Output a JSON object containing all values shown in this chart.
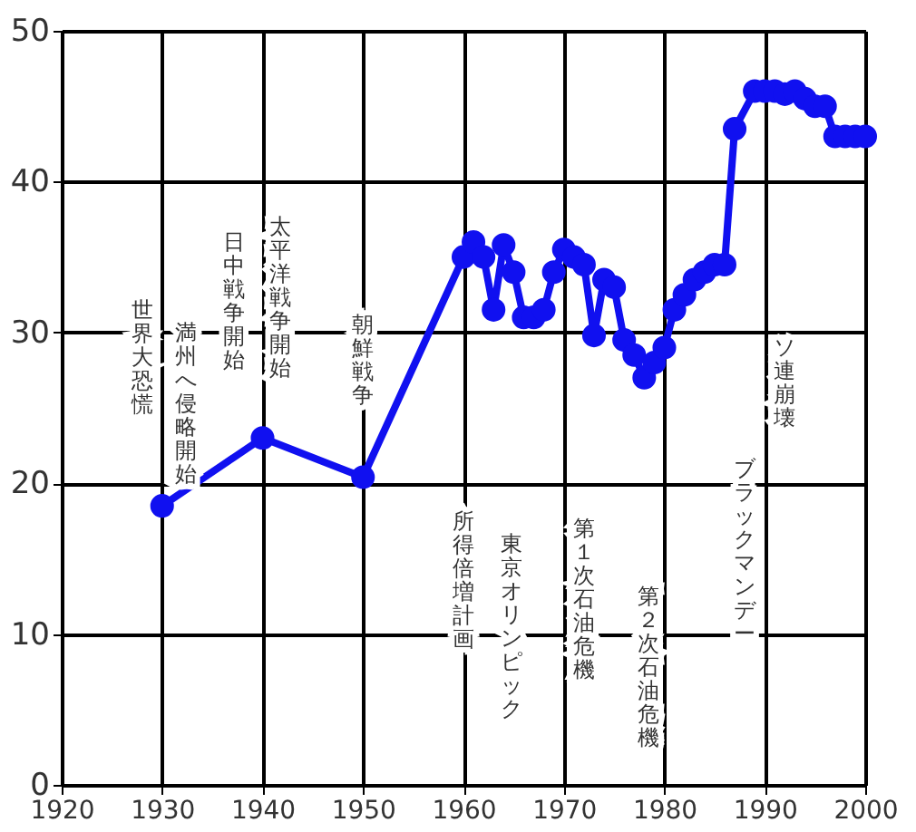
{
  "chart_data": {
    "type": "line",
    "x": [
      1930,
      1940,
      1950,
      1960,
      1961,
      1962,
      1963,
      1964,
      1965,
      1966,
      1967,
      1968,
      1969,
      1970,
      1971,
      1972,
      1973,
      1974,
      1975,
      1976,
      1977,
      1978,
      1979,
      1980,
      1981,
      1982,
      1983,
      1984,
      1985,
      1986,
      1987,
      1989,
      1990,
      1991,
      1992,
      1993,
      1994,
      1995,
      1996,
      1997,
      1998,
      1999,
      2000
    ],
    "series": [
      {
        "color": "#1010f0",
        "values": [
          18.5,
          23,
          20.4,
          35,
          36,
          35,
          31.5,
          35.8,
          34,
          31,
          31,
          31.5,
          34,
          35.5,
          35,
          34.5,
          29.8,
          33.5,
          33,
          29.5,
          28.5,
          27,
          28,
          29,
          31.5,
          32.5,
          33.5,
          34,
          34.5,
          34.5,
          43.5,
          46,
          46,
          46,
          45.8,
          46,
          45.5,
          45,
          45,
          43,
          43,
          43,
          43
        ]
      }
    ],
    "xlim": [
      1920,
      2000
    ],
    "xticks": [
      1920,
      1930,
      1940,
      1950,
      1960,
      1970,
      1980,
      1990,
      2000
    ],
    "ylim": [
      0,
      50
    ],
    "yticks": [
      0,
      10,
      20,
      30,
      40,
      50
    ],
    "grid": true,
    "marker": "circle",
    "line_style": "solid",
    "annotations": [
      "世界大恐慌",
      "満州へ侵略開始",
      "日中戦争開始",
      "太平洋戦争開始",
      "朝鮮戦争",
      "所得倍増計画",
      "東京オリンピック",
      "第１次石油危機",
      "第２次石油危機",
      "ブラックマンデー",
      "ソ連崩壊"
    ]
  }
}
